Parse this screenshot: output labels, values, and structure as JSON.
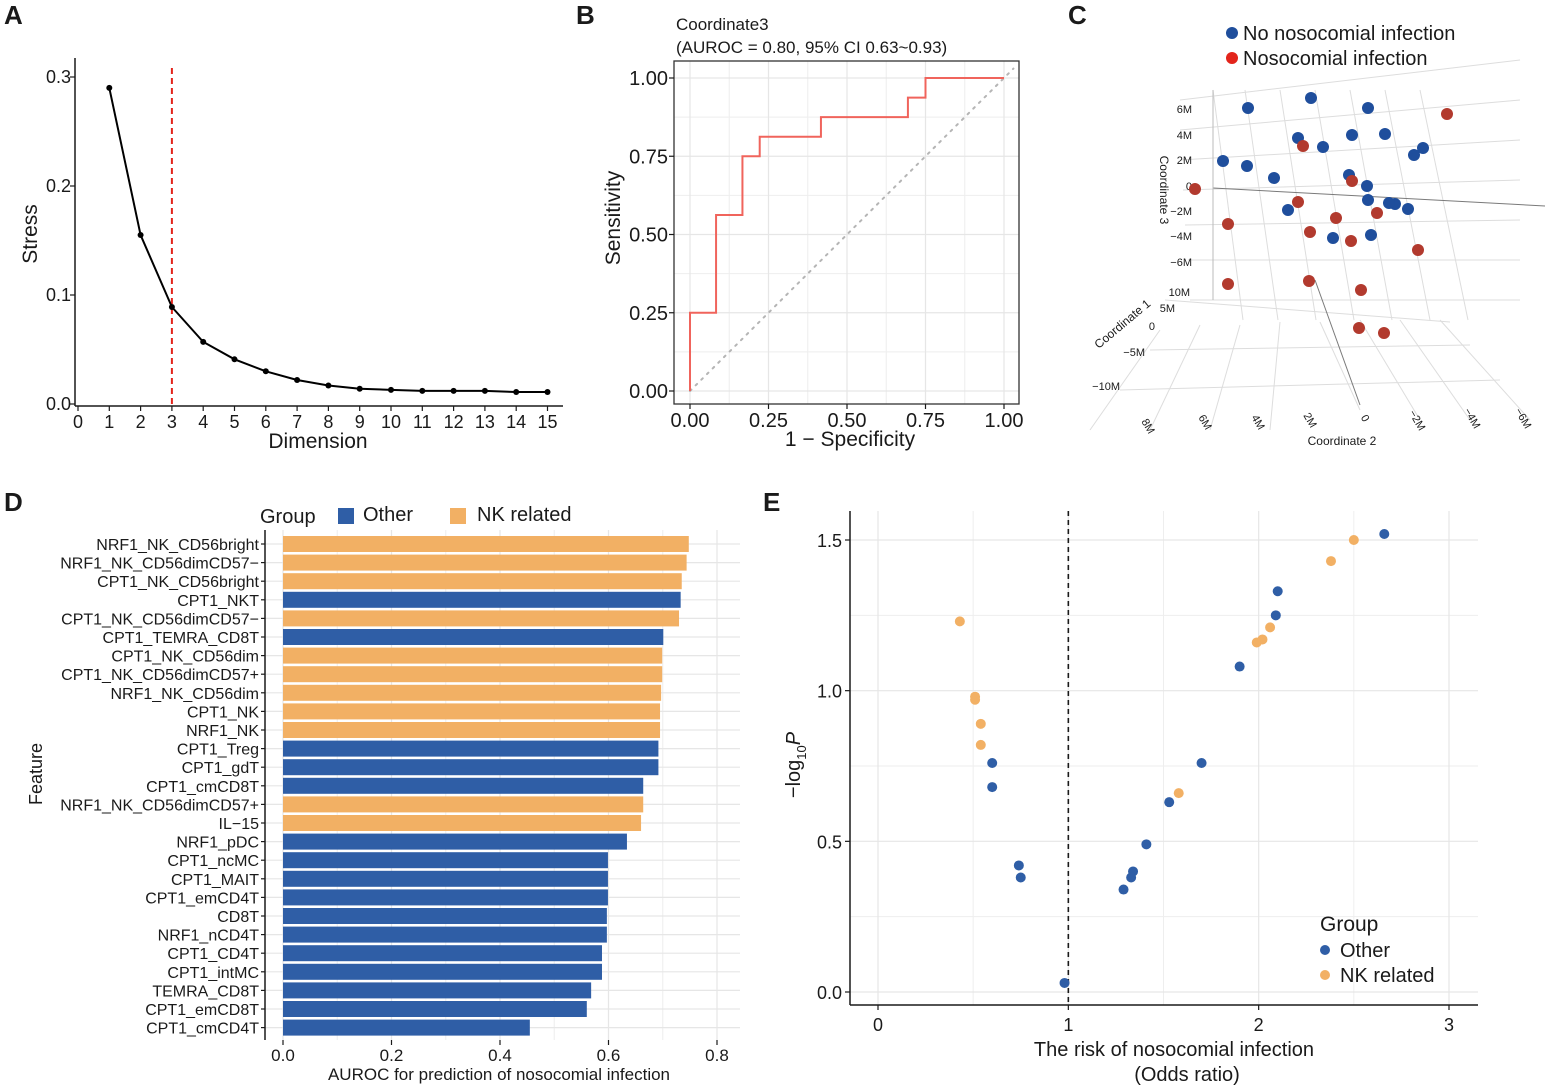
{
  "panels": {
    "A": "A",
    "B": "B",
    "C": "C",
    "D": "D",
    "E": "E"
  },
  "chart_data": [
    {
      "id": "A",
      "type": "line",
      "xlabel": "Dimension",
      "ylabel": "Stress",
      "xlim": [
        0,
        15.5
      ],
      "ylim": [
        0,
        0.31
      ],
      "x_ticks": [
        "0",
        "1",
        "2",
        "3",
        "4",
        "5",
        "6",
        "7",
        "8",
        "9",
        "10",
        "11",
        "12",
        "13",
        "14",
        "15"
      ],
      "y_ticks": [
        "0.0",
        "0.1",
        "0.2",
        "0.3"
      ],
      "x": [
        1,
        2,
        3,
        4,
        5,
        6,
        7,
        8,
        9,
        10,
        11,
        12,
        13,
        14,
        15
      ],
      "values": [
        0.29,
        0.155,
        0.089,
        0.057,
        0.041,
        0.03,
        0.022,
        0.017,
        0.014,
        0.013,
        0.012,
        0.012,
        0.012,
        0.011,
        0.011
      ],
      "cutoff_x": 3,
      "cutoff_color": "#e3241b",
      "line_color": "#000000"
    },
    {
      "id": "B",
      "type": "line",
      "title": "Coordinate3",
      "subtitle": "(AUROC = 0.80, 95% CI 0.63~0.93)",
      "xlabel": "1 − Specificity",
      "ylabel": "Sensitivity",
      "xlim": [
        -0.03,
        1.05
      ],
      "ylim": [
        -0.03,
        1.05
      ],
      "x_ticks": [
        "0.00",
        "0.25",
        "0.50",
        "0.75",
        "1.00"
      ],
      "y_ticks": [
        "0.00",
        "0.25",
        "0.50",
        "0.75",
        "1.00"
      ],
      "roc_x": [
        0,
        0,
        0.083,
        0.083,
        0.167,
        0.167,
        0.222,
        0.222,
        0.417,
        0.417,
        0.694,
        0.694,
        0.75,
        0.75,
        1.0
      ],
      "roc_y": [
        0,
        0.25,
        0.25,
        0.5625,
        0.5625,
        0.75,
        0.75,
        0.8125,
        0.8125,
        0.875,
        0.875,
        0.9375,
        0.9375,
        1.0,
        1.0
      ],
      "roc_color": "#f0645c"
    },
    {
      "id": "C",
      "type": "scatter",
      "legend": [
        {
          "label": "No nosocomial infection",
          "color": "#1f4e9c"
        },
        {
          "label": "Nosocomial infection",
          "color": "#e3241b"
        }
      ],
      "axis_labels": {
        "coord1": "Coordinate 1",
        "coord2": "Coordinate 2",
        "coord3": "Coordinate 3"
      },
      "coord3_ticks": [
        "6M",
        "4M",
        "2M",
        "0",
        "−2M",
        "−4M",
        "−6M"
      ],
      "coord1_ticks": [
        "10M",
        "5M",
        "0",
        "−5M",
        "−10M"
      ],
      "coord2_ticks": [
        "8M",
        "6M",
        "4M",
        "2M",
        "0",
        "−2M",
        "−4M",
        "−6M"
      ],
      "point_colors": {
        "no": "#1f4e9c",
        "yes": "#b23a2e"
      },
      "points_no": [
        [
          248,
          108
        ],
        [
          311,
          98
        ],
        [
          368,
          108
        ],
        [
          298,
          138
        ],
        [
          323,
          147
        ],
        [
          352,
          135
        ],
        [
          385,
          134
        ],
        [
          223,
          161
        ],
        [
          247,
          166
        ],
        [
          274,
          178
        ],
        [
          349,
          175
        ],
        [
          367,
          186
        ],
        [
          395,
          204
        ],
        [
          408,
          209
        ],
        [
          368,
          200
        ],
        [
          288,
          210
        ],
        [
          333,
          238
        ],
        [
          371,
          235
        ],
        [
          414,
          155
        ],
        [
          423,
          148
        ],
        [
          389,
          203
        ]
      ],
      "points_yes": [
        [
          1447,
          114
        ],
        [
          1303,
          146
        ],
        [
          1352,
          181
        ],
        [
          1195,
          189
        ],
        [
          1228,
          224
        ],
        [
          1298,
          202
        ],
        [
          1336,
          218
        ],
        [
          1377,
          213
        ],
        [
          1310,
          232
        ],
        [
          1351,
          241
        ],
        [
          1418,
          250
        ],
        [
          1228,
          284
        ],
        [
          1309,
          281
        ],
        [
          1361,
          290
        ],
        [
          1359,
          328
        ],
        [
          1384,
          333
        ]
      ]
    },
    {
      "id": "D",
      "type": "bar",
      "orientation": "horizontal",
      "legend_title": "Group",
      "legend": [
        {
          "label": "Other",
          "color": "#2f5ea6"
        },
        {
          "label": "NK related",
          "color": "#f2b064"
        }
      ],
      "xlabel": "AUROC for prediction of nosocomial infection",
      "ylabel": "Feature",
      "xlim": [
        0,
        0.8
      ],
      "x_ticks": [
        "0.0",
        "0.2",
        "0.4",
        "0.6",
        "0.8"
      ],
      "categories": [
        "NRF1_NK_CD56bright",
        "NRF1_NK_CD56dimCD57−",
        "CPT1_NK_CD56bright",
        "CPT1_NKT",
        "CPT1_NK_CD56dimCD57−",
        "CPT1_TEMRA_CD8T",
        "CPT1_NK_CD56dim",
        "CPT1_NK_CD56dimCD57+",
        "NRF1_NK_CD56dim",
        "CPT1_NK",
        "NRF1_NK",
        "CPT1_Treg",
        "CPT1_gdT",
        "CPT1_cmCD8T",
        "NRF1_NK_CD56dimCD57+",
        "IL−15",
        "NRF1_pDC",
        "CPT1_ncMC",
        "CPT1_MAIT",
        "CPT1_emCD4T",
        "CD8T",
        "NRF1_nCD4T",
        "CPT1_CD4T",
        "CPT1_intMC",
        "TEMRA_CD8T",
        "CPT1_emCD8T",
        "CPT1_cmCD4T"
      ],
      "values": [
        0.748,
        0.744,
        0.735,
        0.733,
        0.73,
        0.701,
        0.699,
        0.699,
        0.697,
        0.695,
        0.695,
        0.692,
        0.692,
        0.664,
        0.664,
        0.66,
        0.634,
        0.599,
        0.599,
        0.599,
        0.597,
        0.597,
        0.588,
        0.588,
        0.568,
        0.56,
        0.455
      ],
      "groups": [
        "NK related",
        "NK related",
        "NK related",
        "Other",
        "NK related",
        "Other",
        "NK related",
        "NK related",
        "NK related",
        "NK related",
        "NK related",
        "Other",
        "Other",
        "Other",
        "NK related",
        "NK related",
        "Other",
        "Other",
        "Other",
        "Other",
        "Other",
        "Other",
        "Other",
        "Other",
        "Other",
        "Other",
        "Other"
      ]
    },
    {
      "id": "E",
      "type": "scatter",
      "legend_title": "Group",
      "legend": [
        {
          "label": "Other",
          "color": "#2f5ea6"
        },
        {
          "label": "NK related",
          "color": "#f2b064"
        }
      ],
      "xlabel": "The risk of nosocomial infection",
      "xlabel2": "(Odds ratio)",
      "ylabel": "−log",
      "ylabel_sub": "10",
      "ylabel_p": "P",
      "xlim": [
        -0.2,
        3.1
      ],
      "ylim": [
        -0.05,
        1.6
      ],
      "x_ticks": [
        "0",
        "1",
        "2",
        "3"
      ],
      "y_ticks": [
        "0.0",
        "0.5",
        "1.0",
        "1.5"
      ],
      "refline_x": 1,
      "points": [
        {
          "x": 2.66,
          "y": 1.52,
          "group": "Other"
        },
        {
          "x": 2.5,
          "y": 1.5,
          "group": "NK related"
        },
        {
          "x": 2.38,
          "y": 1.43,
          "group": "NK related"
        },
        {
          "x": 2.1,
          "y": 1.33,
          "group": "Other"
        },
        {
          "x": 2.09,
          "y": 1.25,
          "group": "Other"
        },
        {
          "x": 2.06,
          "y": 1.21,
          "group": "NK related"
        },
        {
          "x": 2.02,
          "y": 1.17,
          "group": "NK related"
        },
        {
          "x": 1.99,
          "y": 1.16,
          "group": "NK related"
        },
        {
          "x": 1.9,
          "y": 1.08,
          "group": "Other"
        },
        {
          "x": 0.43,
          "y": 1.23,
          "group": "NK related"
        },
        {
          "x": 0.51,
          "y": 0.98,
          "group": "NK related"
        },
        {
          "x": 0.51,
          "y": 0.97,
          "group": "NK related"
        },
        {
          "x": 0.54,
          "y": 0.89,
          "group": "NK related"
        },
        {
          "x": 0.54,
          "y": 0.82,
          "group": "NK related"
        },
        {
          "x": 0.6,
          "y": 0.76,
          "group": "Other"
        },
        {
          "x": 0.6,
          "y": 0.68,
          "group": "Other"
        },
        {
          "x": 0.74,
          "y": 0.42,
          "group": "Other"
        },
        {
          "x": 0.75,
          "y": 0.38,
          "group": "Other"
        },
        {
          "x": 1.7,
          "y": 0.76,
          "group": "Other"
        },
        {
          "x": 1.58,
          "y": 0.66,
          "group": "NK related"
        },
        {
          "x": 1.53,
          "y": 0.63,
          "group": "Other"
        },
        {
          "x": 1.41,
          "y": 0.49,
          "group": "Other"
        },
        {
          "x": 1.34,
          "y": 0.4,
          "group": "Other"
        },
        {
          "x": 1.33,
          "y": 0.38,
          "group": "Other"
        },
        {
          "x": 1.29,
          "y": 0.34,
          "group": "Other"
        },
        {
          "x": 0.98,
          "y": 0.03,
          "group": "Other"
        }
      ]
    }
  ]
}
